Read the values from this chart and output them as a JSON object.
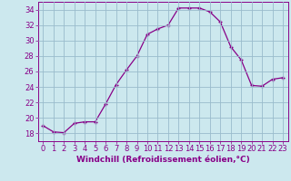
{
  "x": [
    0,
    1,
    2,
    3,
    4,
    5,
    6,
    7,
    8,
    9,
    10,
    11,
    12,
    13,
    14,
    15,
    16,
    17,
    18,
    19,
    20,
    21,
    22,
    23
  ],
  "y": [
    19.0,
    18.2,
    18.1,
    19.3,
    19.5,
    19.5,
    21.8,
    24.3,
    26.2,
    28.0,
    30.8,
    31.5,
    32.0,
    34.2,
    34.2,
    34.2,
    33.7,
    32.4,
    29.2,
    27.5,
    24.2,
    24.1,
    25.0,
    25.2
  ],
  "line_color": "#880088",
  "marker": "+",
  "bg_color": "#cce8ee",
  "grid_color": "#99bbcc",
  "xlabel": "Windchill (Refroidissement éolien,°C)",
  "ylim": [
    17,
    35
  ],
  "xlim": [
    -0.5,
    23.5
  ],
  "yticks": [
    18,
    20,
    22,
    24,
    26,
    28,
    30,
    32,
    34
  ],
  "xticks": [
    0,
    1,
    2,
    3,
    4,
    5,
    6,
    7,
    8,
    9,
    10,
    11,
    12,
    13,
    14,
    15,
    16,
    17,
    18,
    19,
    20,
    21,
    22,
    23
  ],
  "xlabel_fontsize": 6.5,
  "tick_fontsize": 6.0,
  "line_color_hex": "#880088"
}
